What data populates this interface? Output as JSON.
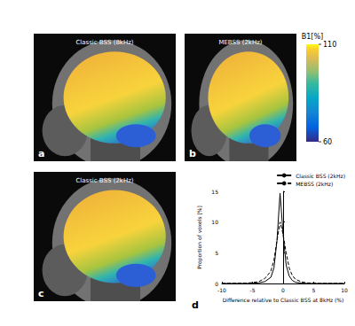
{
  "panels": [
    {
      "letter": "a",
      "title": "Classic BSS (8kHz)"
    },
    {
      "letter": "b",
      "title": "MEBSS (2kHz)"
    },
    {
      "letter": "c",
      "title": "Classic BSS (2kHz)"
    }
  ],
  "colorbar": {
    "label": "B1[%]",
    "range": [
      60,
      110
    ],
    "ticks": [
      60,
      110
    ]
  },
  "chart_data": {
    "type": "line",
    "letter": "d",
    "x": [
      -10,
      -6,
      -5,
      -4,
      -3,
      -2,
      -1.5,
      -1,
      -0.5,
      0,
      0.5,
      1,
      1.5,
      2,
      3,
      4,
      5,
      6,
      10
    ],
    "series": [
      {
        "name": "Classic BSS (2kHz)",
        "color": "#000000",
        "line_style": "solid",
        "values": [
          0,
          0,
          0.02,
          0.1,
          0.3,
          1.0,
          2.5,
          7,
          14.7,
          8,
          3,
          1.2,
          0.5,
          0.2,
          0.05,
          0,
          0,
          0,
          0
        ]
      },
      {
        "name": "MEBSS (2kHz)",
        "color": "#000000",
        "line_style": "dashed",
        "values": [
          0,
          0.05,
          0.15,
          0.3,
          0.8,
          2.0,
          3.8,
          7,
          10,
          8,
          5,
          2.5,
          1.3,
          0.7,
          0.25,
          0.1,
          0.05,
          0,
          0
        ]
      }
    ],
    "xlabel": "Difference relative to Classic BSS at 8kHz (%)",
    "ylabel": "Proportion of voxels [%]",
    "xlim": [
      -10,
      10
    ],
    "xticks": [
      -10,
      -5,
      0,
      5,
      10
    ],
    "ylim": [
      0,
      15
    ],
    "yticks": [
      0,
      5,
      10,
      15
    ],
    "grid": false,
    "legend": "upper right"
  }
}
